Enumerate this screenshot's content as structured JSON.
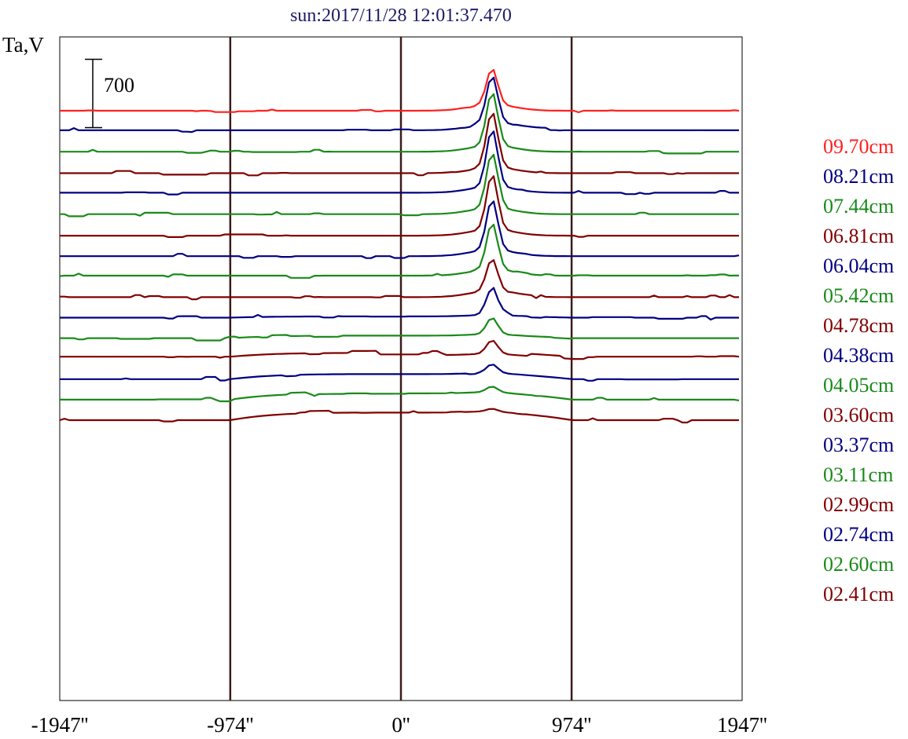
{
  "chart_data": {
    "type": "line",
    "title": "sun:2017/11/28 12:01:37.470",
    "ylabel": "Ta,V",
    "xlabel": "",
    "xlim": [
      -1947,
      1947
    ],
    "x_ticks": [
      -1947,
      -974,
      0,
      974,
      1947
    ],
    "x_tick_labels": [
      "-1947''",
      "-974''",
      "0''",
      "974''",
      "1947''"
    ],
    "vertical_markers": [
      -974,
      0,
      974
    ],
    "scale_bar": {
      "label": "700",
      "value": 700
    },
    "peak_x": 520,
    "grid": false,
    "legend_placement": "right",
    "colors": {
      "red": "#ff2020",
      "blue": "#000080",
      "green": "#1a8a1a",
      "maroon": "#800000",
      "marker": "#3c1a1a"
    },
    "series": [
      {
        "name": "09.70cm",
        "color": "#ff2020",
        "baseline": 0,
        "peak": 370
      },
      {
        "name": "08.21cm",
        "color": "#000080",
        "baseline": -200,
        "peak": 480
      },
      {
        "name": "07.44cm",
        "color": "#1a8a1a",
        "baseline": -420,
        "peak": 550
      },
      {
        "name": "06.81cm",
        "color": "#800000",
        "baseline": -640,
        "peak": 570
      },
      {
        "name": "06.04cm",
        "color": "#000080",
        "baseline": -840,
        "peak": 590
      },
      {
        "name": "05.42cm",
        "color": "#1a8a1a",
        "baseline": -1060,
        "peak": 570
      },
      {
        "name": "04.78cm",
        "color": "#800000",
        "baseline": -1280,
        "peak": 570
      },
      {
        "name": "04.38cm",
        "color": "#000080",
        "baseline": -1490,
        "peak": 520
      },
      {
        "name": "04.05cm",
        "color": "#1a8a1a",
        "baseline": -1690,
        "peak": 480
      },
      {
        "name": "03.60cm",
        "color": "#800000",
        "baseline": -1910,
        "peak": 330
      },
      {
        "name": "03.37cm",
        "color": "#000080",
        "baseline": -2120,
        "peak": 290
      },
      {
        "name": "03.11cm",
        "color": "#1a8a1a",
        "baseline": -2330,
        "peak": 170
      },
      {
        "name": "02.99cm",
        "color": "#800000",
        "baseline": -2520,
        "peak": 140
      },
      {
        "name": "02.74cm",
        "color": "#000080",
        "baseline": -2750,
        "peak": 90
      },
      {
        "name": "02.60cm",
        "color": "#1a8a1a",
        "baseline": -2960,
        "peak": 60
      },
      {
        "name": "02.41cm",
        "color": "#800000",
        "baseline": -3170,
        "peak": 30
      }
    ]
  }
}
